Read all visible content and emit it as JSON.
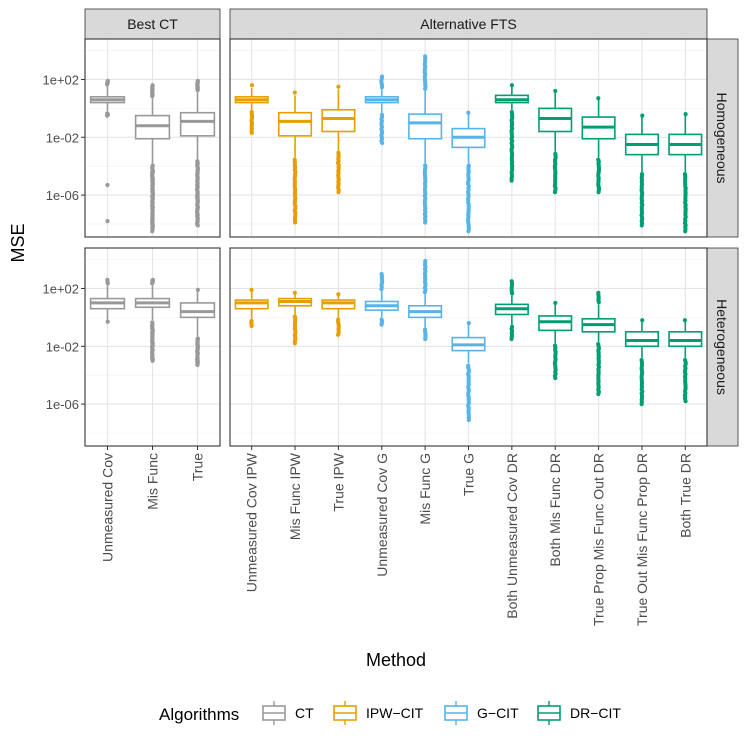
{
  "chart_data": {
    "type": "box",
    "ylabel": "MSE",
    "xlabel": "Method",
    "yscale": "log10",
    "ylim_log10": [
      -8.9,
      4.8
    ],
    "yticks": [
      {
        "label": "1e+02",
        "log10": 2
      },
      {
        "label": "1e-02",
        "log10": -2
      },
      {
        "label": "1e-06",
        "log10": -6
      }
    ],
    "facet_cols": [
      "Best CT",
      "Alternative FTS"
    ],
    "facet_rows": [
      "Homogeneous",
      "Heterogeneous"
    ],
    "legend": {
      "title": "Algorithms",
      "position": "bottom",
      "entries": [
        {
          "name": "CT",
          "color": "#999999"
        },
        {
          "name": "IPW−CIT",
          "color": "#E69F00"
        },
        {
          "name": "G−CIT",
          "color": "#56B4E9"
        },
        {
          "name": "DR−CIT",
          "color": "#009E73"
        }
      ]
    },
    "methods": {
      "Best CT": [
        "Unmeasured Cov",
        "Mis Func",
        "True"
      ],
      "Alternative FTS": [
        "Unmeasured Cov IPW",
        "Mis Func IPW",
        "True IPW",
        "Unmeasured Cov G",
        "Mis Func G",
        "True G",
        "Both Unmeasured Cov DR",
        "Both Mis Func DR",
        "True Prop Mis Func Out DR",
        "True Out Mis Func Prop DR",
        "Both True DR"
      ]
    },
    "algorithms": {
      "Best CT": [
        "CT",
        "CT",
        "CT"
      ],
      "Alternative FTS": [
        "IPW−CIT",
        "IPW−CIT",
        "IPW−CIT",
        "G−CIT",
        "G−CIT",
        "G−CIT",
        "DR−CIT",
        "DR−CIT",
        "DR−CIT",
        "DR−CIT",
        "DR−CIT"
      ]
    },
    "boxes_log10": {
      "Homogeneous": {
        "Best CT": [
          {
            "q1": 0.4,
            "med": 0.6,
            "q3": 0.8,
            "wlo": -0.2,
            "whi": 1.5,
            "outlo": -0.5,
            "outhi": 1.9,
            "extra": [
              -5.3,
              -7.8
            ],
            "dense": true
          },
          {
            "q1": -2.1,
            "med": -1.2,
            "q3": -0.5,
            "wlo": -3.8,
            "whi": 0.7,
            "outlo": -8.5,
            "outhi": 1.6,
            "dense": true
          },
          {
            "q1": -1.9,
            "med": -0.9,
            "q3": -0.3,
            "wlo": -3.5,
            "whi": 1.1,
            "outlo": -8.1,
            "outhi": 1.9,
            "dense": true
          }
        ],
        "Alternative FTS": [
          {
            "q1": 0.4,
            "med": 0.6,
            "q3": 0.8,
            "wlo": -0.1,
            "whi": 1.4,
            "outlo": -1.7,
            "outhi": 1.6
          },
          {
            "q1": -1.9,
            "med": -0.9,
            "q3": -0.3,
            "wlo": -3.4,
            "whi": 0.9,
            "outlo": -7.9,
            "outhi": 1.1
          },
          {
            "q1": -1.6,
            "med": -0.7,
            "q3": -0.1,
            "wlo": -2.9,
            "whi": 1.3,
            "outlo": -5.8,
            "outhi": 1.5
          },
          {
            "q1": 0.4,
            "med": 0.6,
            "q3": 0.8,
            "wlo": -0.3,
            "whi": 1.3,
            "outlo": -2.4,
            "outhi": 2.2
          },
          {
            "q1": -2.1,
            "med": -1.0,
            "q3": -0.4,
            "wlo": -3.8,
            "whi": 1.2,
            "outlo": -7.9,
            "outhi": 3.6
          },
          {
            "q1": -2.7,
            "med": -2.0,
            "q3": -1.4,
            "wlo": -3.8,
            "whi": -0.3,
            "outlo": -8.5,
            "outhi": -0.3
          },
          {
            "q1": 0.4,
            "med": 0.6,
            "q3": 0.9,
            "wlo": -0.1,
            "whi": 1.6,
            "outlo": -5.0,
            "outhi": 1.6
          },
          {
            "q1": -1.6,
            "med": -0.7,
            "q3": 0.0,
            "wlo": -3.0,
            "whi": 1.2,
            "outlo": -5.8,
            "outhi": 1.2
          },
          {
            "q1": -2.1,
            "med": -1.3,
            "q3": -0.6,
            "wlo": -3.4,
            "whi": 0.7,
            "outlo": -5.8,
            "outhi": 0.7
          },
          {
            "q1": -3.2,
            "med": -2.5,
            "q3": -1.8,
            "wlo": -4.4,
            "whi": -0.5,
            "outlo": -8.1,
            "outhi": -0.5
          },
          {
            "q1": -3.2,
            "med": -2.5,
            "q3": -1.8,
            "wlo": -4.4,
            "whi": -0.4,
            "outlo": -8.5,
            "outhi": -0.4
          }
        ]
      },
      "Heterogeneous": {
        "Best CT": [
          {
            "q1": 0.6,
            "med": 1.0,
            "q3": 1.3,
            "wlo": -0.3,
            "whi": 2.2,
            "outlo": -0.3,
            "outhi": 2.6
          },
          {
            "q1": 0.7,
            "med": 1.0,
            "q3": 1.3,
            "wlo": -0.2,
            "whi": 2.2,
            "outlo": -3.0,
            "outhi": 2.6,
            "dense": true
          },
          {
            "q1": 0.0,
            "med": 0.4,
            "q3": 1.0,
            "wlo": -1.3,
            "whi": 1.9,
            "outlo": -3.3,
            "outhi": 1.9,
            "dense": true
          }
        ],
        "Alternative FTS": [
          {
            "q1": 0.6,
            "med": 1.0,
            "q3": 1.2,
            "wlo": -0.1,
            "whi": 1.9,
            "outlo": -0.6,
            "outhi": 1.9
          },
          {
            "q1": 0.8,
            "med": 1.1,
            "q3": 1.3,
            "wlo": 0.2,
            "whi": 1.7,
            "outlo": -1.8,
            "outhi": 1.7
          },
          {
            "q1": 0.6,
            "med": 1.0,
            "q3": 1.2,
            "wlo": 0.0,
            "whi": 1.6,
            "outlo": -1.2,
            "outhi": 1.6
          },
          {
            "q1": 0.5,
            "med": 0.8,
            "q3": 1.1,
            "wlo": 0.0,
            "whi": 1.8,
            "outlo": -0.5,
            "outhi": 3.0
          },
          {
            "q1": 0.0,
            "med": 0.4,
            "q3": 0.8,
            "wlo": -0.7,
            "whi": 1.6,
            "outlo": -1.5,
            "outhi": 3.9
          },
          {
            "q1": -2.3,
            "med": -1.9,
            "q3": -1.4,
            "wlo": -3.2,
            "whi": -0.4,
            "outlo": -7.1,
            "outhi": -0.4
          },
          {
            "q1": 0.2,
            "med": 0.6,
            "q3": 0.9,
            "wlo": -0.5,
            "whi": 1.5,
            "outlo": -1.5,
            "outhi": 2.5
          },
          {
            "q1": -0.9,
            "med": -0.3,
            "q3": 0.1,
            "wlo": -1.8,
            "whi": 1.0,
            "outlo": -4.2,
            "outhi": 1.0
          },
          {
            "q1": -1.0,
            "med": -0.5,
            "q3": -0.1,
            "wlo": -1.7,
            "whi": 0.9,
            "outlo": -5.3,
            "outhi": 1.7
          },
          {
            "q1": -2.0,
            "med": -1.6,
            "q3": -1.0,
            "wlo": -2.8,
            "whi": -0.2,
            "outlo": -6.0,
            "outhi": -0.2
          },
          {
            "q1": -2.0,
            "med": -1.6,
            "q3": -1.0,
            "wlo": -2.8,
            "whi": -0.2,
            "outlo": -5.8,
            "outhi": -0.2
          }
        ]
      }
    }
  }
}
